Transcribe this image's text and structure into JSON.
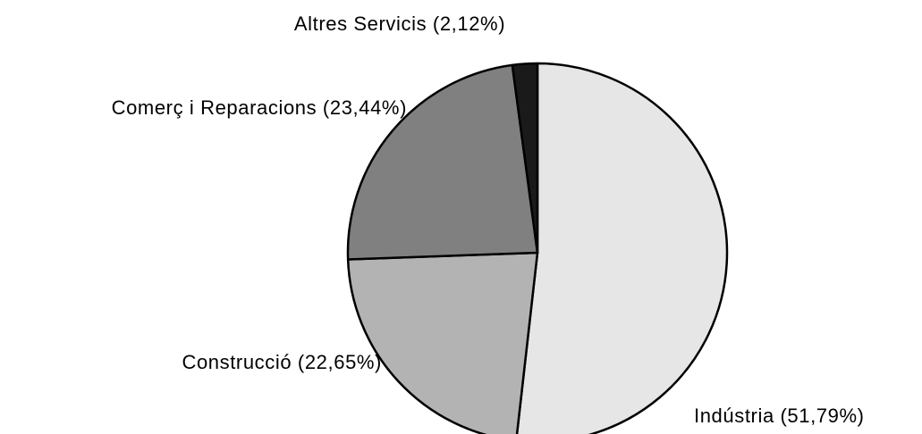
{
  "chart_data": {
    "type": "pie",
    "categories": [
      "Indústria (51,79%)",
      "Construcció (22,65%)",
      "Comerç i Reparacions (23,44%)",
      "Altres Servicis (2,12%)"
    ],
    "values": [
      51.79,
      22.65,
      23.44,
      2.12
    ],
    "colors": [
      "#e6e6e6",
      "#b3b3b3",
      "#808080",
      "#1a1a1a"
    ],
    "start_angle": 0,
    "direction": "clockwise"
  }
}
